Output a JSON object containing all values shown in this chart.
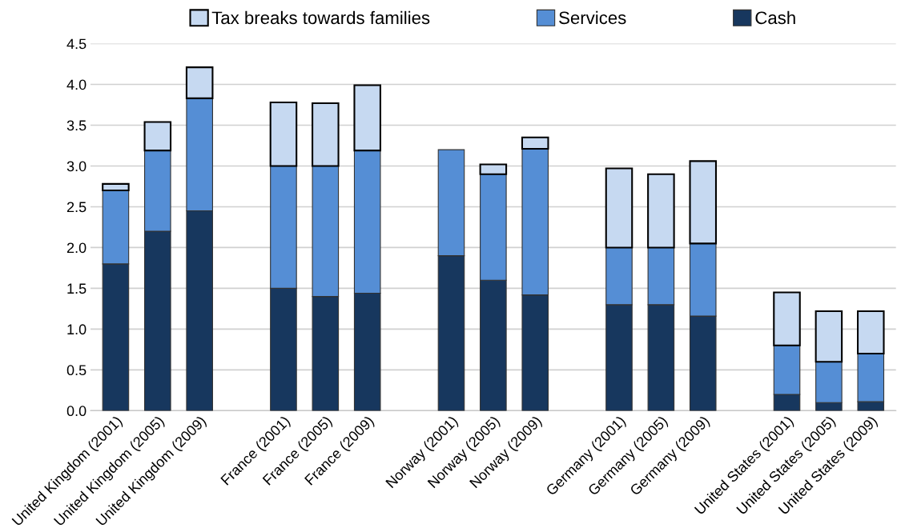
{
  "chart_data": {
    "type": "bar",
    "stacked": true,
    "categories": [
      "United Kingdom (2001)",
      "United Kingdom (2005)",
      "United Kingdom (2009)",
      null,
      "France (2001)",
      "France (2005)",
      "France (2009)",
      null,
      "Norway (2001)",
      "Norway (2005)",
      "Norway (2009)",
      null,
      "Germany (2001)",
      "Germany (2005)",
      "Germany (2009)",
      null,
      "United States (2001)",
      "United States (2005)",
      "United States (2009)"
    ],
    "series": [
      {
        "name": "Cash",
        "color": "#17375e",
        "values": [
          1.8,
          2.2,
          2.45,
          null,
          1.5,
          1.4,
          1.44,
          null,
          1.9,
          1.6,
          1.42,
          null,
          1.3,
          1.3,
          1.16,
          null,
          0.2,
          0.1,
          0.11
        ]
      },
      {
        "name": "Services",
        "color": "#558ed5",
        "values": [
          0.9,
          0.99,
          1.38,
          null,
          1.5,
          1.6,
          1.75,
          null,
          1.3,
          1.3,
          1.79,
          null,
          0.7,
          0.7,
          0.89,
          null,
          0.6,
          0.5,
          0.59
        ]
      },
      {
        "name": "Tax breaks towards families",
        "color": "#c6d9f1",
        "values": [
          0.08,
          0.35,
          0.38,
          null,
          0.78,
          0.77,
          0.8,
          null,
          null,
          0.12,
          0.14,
          null,
          0.97,
          0.9,
          1.01,
          null,
          0.65,
          0.62,
          0.52
        ]
      }
    ],
    "ylim": [
      0,
      4.5
    ],
    "yticks": [
      {
        "value": 0,
        "label": "0.0"
      },
      {
        "value": 0.5,
        "label": "0.5"
      },
      {
        "value": 1,
        "label": "1.0"
      },
      {
        "value": 1.5,
        "label": "1.5"
      },
      {
        "value": 2,
        "label": "2.0"
      },
      {
        "value": 2.5,
        "label": "2.5"
      },
      {
        "value": 3,
        "label": "3.0"
      },
      {
        "value": 3.5,
        "label": "3.5"
      },
      {
        "value": 4,
        "label": "4.0"
      },
      {
        "value": 4.5,
        "label": "4.5"
      }
    ],
    "grid": "y",
    "legend": "top"
  }
}
